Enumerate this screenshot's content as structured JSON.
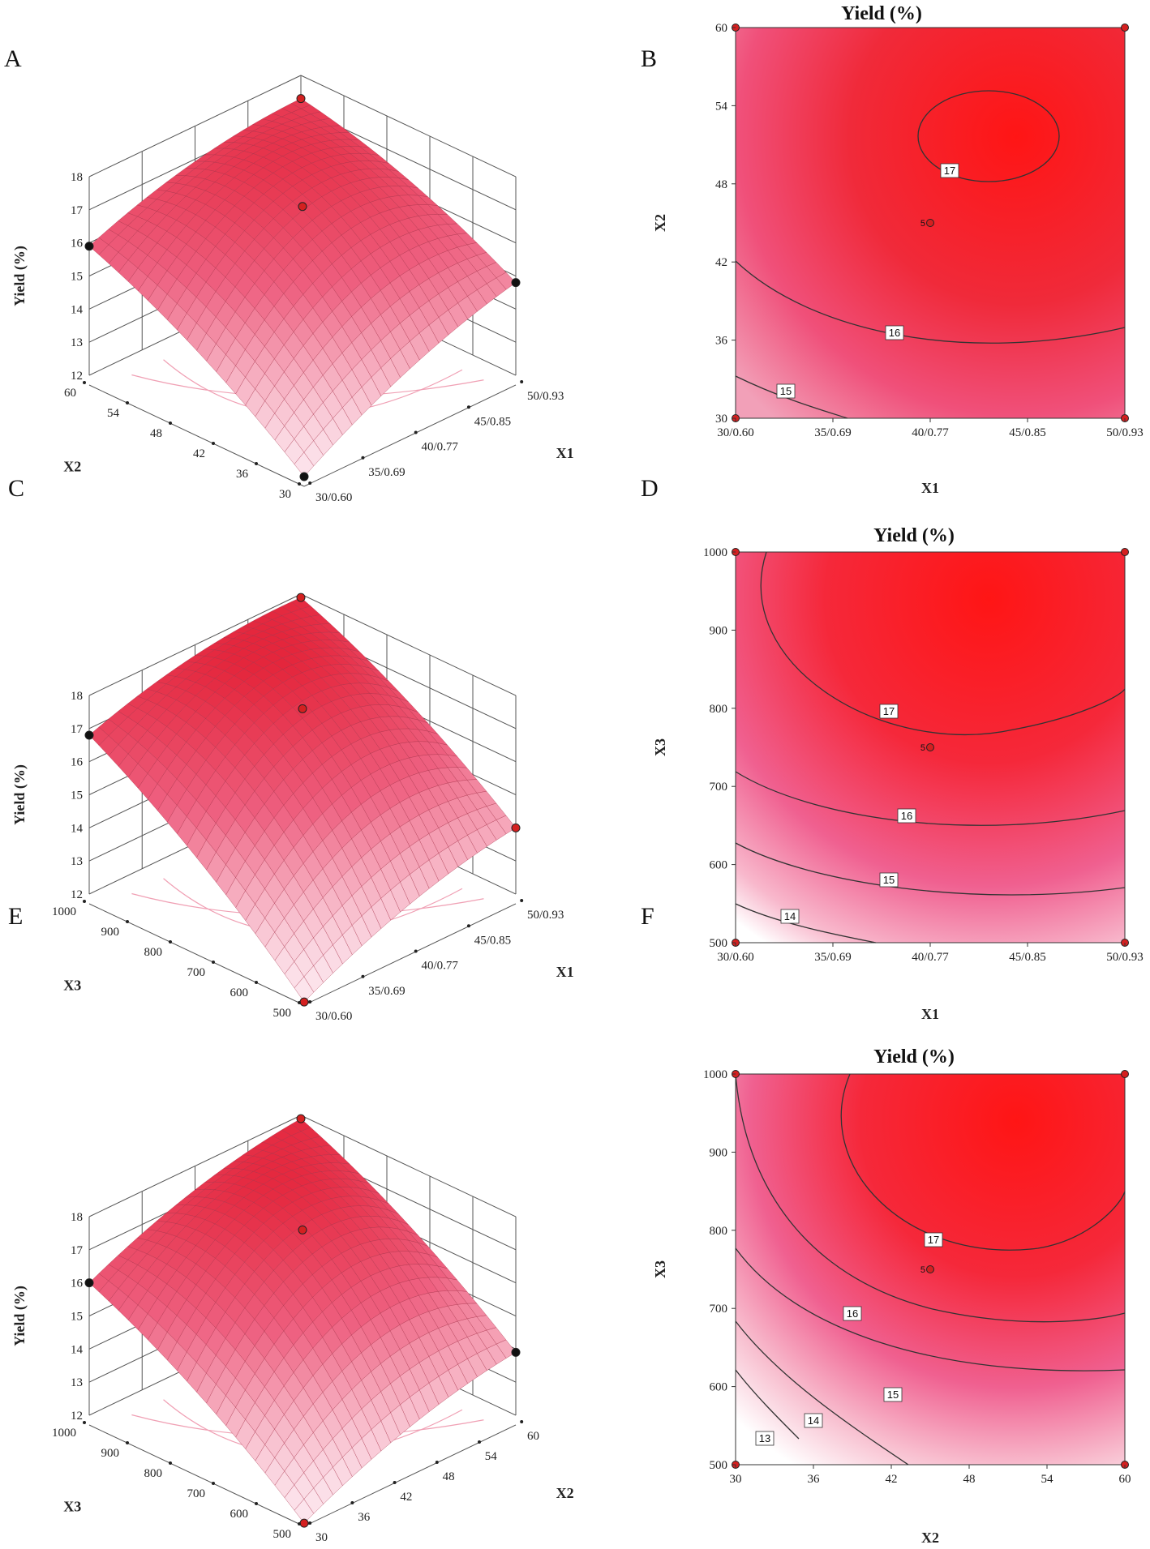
{
  "chart_data": [
    {
      "panel": "A",
      "type": "surface3d",
      "zlabel": "Yield (%)",
      "zticks": [
        "12",
        "13",
        "14",
        "15",
        "16",
        "17",
        "18"
      ],
      "zlim": [
        12,
        18
      ],
      "xaxis": {
        "label": "X1",
        "ticks": [
          "30/0.60",
          "35/0.69",
          "40/0.77",
          "45/0.85",
          "50/0.93"
        ]
      },
      "yaxis": {
        "label": "X2",
        "ticks": [
          "30",
          "36",
          "42",
          "48",
          "54",
          "60"
        ]
      },
      "corner_values": {
        "back_left": 15.9,
        "back": 17.3,
        "right": 14.8,
        "front": 12.0
      },
      "peak_value": 17.4
    },
    {
      "panel": "B",
      "type": "contour",
      "title": "Yield (%)",
      "xlabel": "X1",
      "ylabel": "X2",
      "xticks": [
        "30/0.60",
        "35/0.69",
        "40/0.77",
        "45/0.85",
        "50/0.93"
      ],
      "yticks": [
        "30",
        "36",
        "42",
        "48",
        "54",
        "60"
      ],
      "contour_levels": [
        "15",
        "16",
        "17"
      ],
      "center_label": "5"
    },
    {
      "panel": "C",
      "type": "surface3d",
      "zlabel": "Yield (%)",
      "zticks": [
        "12",
        "13",
        "14",
        "15",
        "16",
        "17",
        "18"
      ],
      "zlim": [
        12,
        18
      ],
      "xaxis": {
        "label": "X1",
        "ticks": [
          "30/0.60",
          "35/0.69",
          "40/0.77",
          "45/0.85",
          "50/0.93"
        ]
      },
      "yaxis": {
        "label": "X3",
        "ticks": [
          "500",
          "600",
          "700",
          "800",
          "900",
          "1000"
        ]
      },
      "corner_values": {
        "back_left": 16.8,
        "back": 17.9,
        "right": 14.0,
        "front": 11.8
      },
      "peak_value": 17.9
    },
    {
      "panel": "D",
      "type": "contour",
      "title": "Yield (%)",
      "xlabel": "X1",
      "ylabel": "X3",
      "xticks": [
        "30/0.60",
        "35/0.69",
        "40/0.77",
        "45/0.85",
        "50/0.93"
      ],
      "yticks": [
        "500",
        "600",
        "700",
        "800",
        "900",
        "1000"
      ],
      "contour_levels": [
        "14",
        "15",
        "16",
        "17"
      ],
      "center_label": "5"
    },
    {
      "panel": "E",
      "type": "surface3d",
      "zlabel": "Yield (%)",
      "zticks": [
        "12",
        "13",
        "14",
        "15",
        "16",
        "17",
        "18"
      ],
      "zlim": [
        12,
        18
      ],
      "xaxis": {
        "label": "X2",
        "ticks": [
          "30",
          "36",
          "42",
          "48",
          "54",
          "60"
        ]
      },
      "yaxis": {
        "label": "X3",
        "ticks": [
          "500",
          "600",
          "700",
          "800",
          "900",
          "1000"
        ]
      },
      "corner_values": {
        "back_left": 16.0,
        "back": 17.9,
        "right": 13.9,
        "front": 11.8
      },
      "peak_value": 17.9
    },
    {
      "panel": "F",
      "type": "contour",
      "title": "Yield (%)",
      "xlabel": "X2",
      "ylabel": "X3",
      "xticks": [
        "30",
        "36",
        "42",
        "48",
        "54",
        "60"
      ],
      "yticks": [
        "500",
        "600",
        "700",
        "800",
        "900",
        "1000"
      ],
      "contour_levels": [
        "13",
        "14",
        "15",
        "16",
        "17"
      ],
      "center_label": "5"
    }
  ],
  "colors": {
    "surface_high": "#ff1a1a",
    "surface_low": "#ffffff",
    "surface_mid": "#f06080",
    "grid": "#555555",
    "point_red": "#d42020",
    "point_black": "#111111",
    "contour_line": "#333333"
  }
}
